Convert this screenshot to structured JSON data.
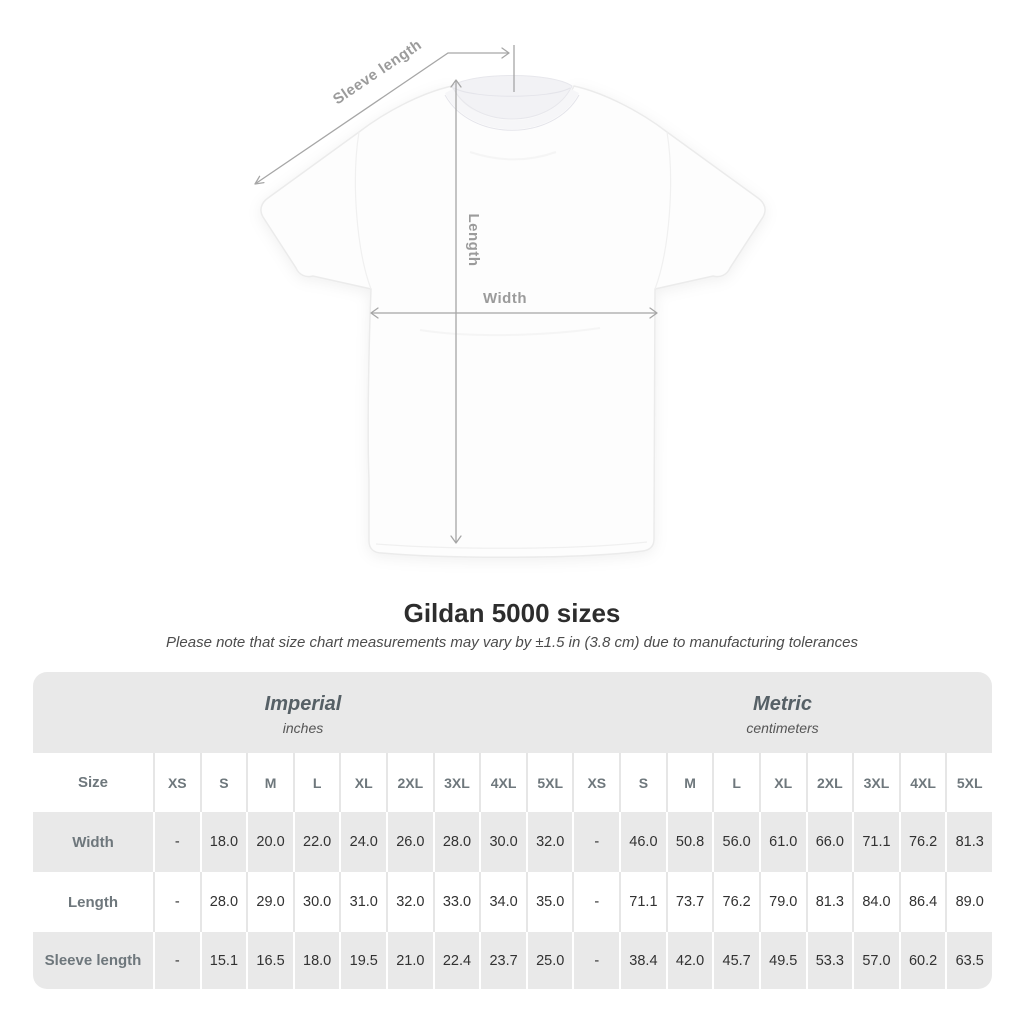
{
  "diagram": {
    "sleeve_label": "Sleeve length",
    "length_label": "Length",
    "width_label": "Width"
  },
  "heading": {
    "title": "Gildan 5000 sizes",
    "subtitle": "Please note that size chart measurements may vary by ±1.5 in (3.8 cm) due to manufacturing tolerances"
  },
  "table": {
    "size_header": "Size",
    "unit_groups": [
      {
        "name": "Imperial",
        "unit": "inches"
      },
      {
        "name": "Metric",
        "unit": "centimeters"
      }
    ],
    "sizes": [
      "XS",
      "S",
      "M",
      "L",
      "XL",
      "2XL",
      "3XL",
      "4XL",
      "5XL"
    ],
    "rows": [
      {
        "label": "Width",
        "imperial": [
          "-",
          "18.0",
          "20.0",
          "22.0",
          "24.0",
          "26.0",
          "28.0",
          "30.0",
          "32.0"
        ],
        "metric": [
          "-",
          "46.0",
          "50.8",
          "56.0",
          "61.0",
          "66.0",
          "71.1",
          "76.2",
          "81.3"
        ]
      },
      {
        "label": "Length",
        "imperial": [
          "-",
          "28.0",
          "29.0",
          "30.0",
          "31.0",
          "32.0",
          "33.0",
          "34.0",
          "35.0"
        ],
        "metric": [
          "-",
          "71.1",
          "73.7",
          "76.2",
          "79.0",
          "81.3",
          "84.0",
          "86.4",
          "89.0"
        ]
      },
      {
        "label": "Sleeve length",
        "imperial": [
          "-",
          "15.1",
          "16.5",
          "18.0",
          "19.5",
          "21.0",
          "22.4",
          "23.7",
          "25.0"
        ],
        "metric": [
          "-",
          "38.4",
          "42.0",
          "45.7",
          "49.5",
          "53.3",
          "57.0",
          "60.2",
          "63.5"
        ]
      }
    ]
  },
  "colors": {
    "band_gray": "#e9e9e9",
    "row_alt_gray": "#e9e9e9",
    "separator_light": "#e6e6e6",
    "header_text": "#6e777c",
    "value_text": "#323232",
    "title_text": "#2d2d2d",
    "annotation_gray": "#9b9b9b",
    "arrow_gray": "#a6a6a6"
  }
}
